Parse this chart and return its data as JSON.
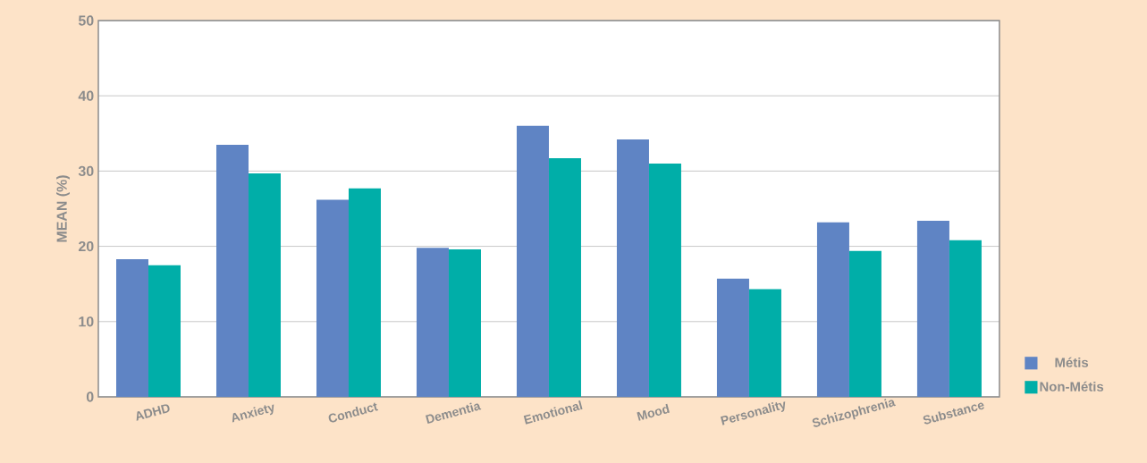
{
  "chart_data": {
    "type": "bar",
    "ylabel": "MEAN (%)",
    "categories": [
      "ADHD",
      "Anxiety",
      "Conduct",
      "Dementia",
      "Emotional",
      "Mood",
      "Personality",
      "Schizophrenia",
      "Substance"
    ],
    "series": [
      {
        "name": "Métis",
        "color": "#5f84c4",
        "values": [
          18.3,
          33.5,
          26.2,
          19.8,
          36.0,
          34.2,
          15.7,
          23.2,
          23.4
        ]
      },
      {
        "name": "Non-Métis",
        "color": "#00aea8",
        "values": [
          17.5,
          29.7,
          27.7,
          19.6,
          31.7,
          31.0,
          14.3,
          19.4,
          20.8
        ]
      }
    ],
    "ylim": [
      0,
      50
    ],
    "yticks": [
      0,
      10,
      20,
      30,
      40,
      50
    ],
    "grid": "y",
    "legend": "bottom right"
  }
}
